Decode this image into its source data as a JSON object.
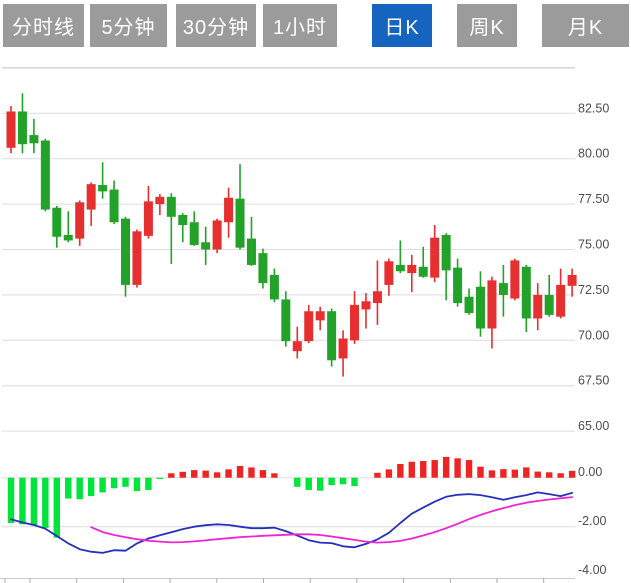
{
  "toolbar": {
    "tabs": [
      {
        "label": "分时线",
        "active": false
      },
      {
        "label": "5分钟",
        "active": false
      },
      {
        "label": "30分钟",
        "active": false
      },
      {
        "label": "1小时",
        "active": false
      },
      {
        "label": "日K",
        "active": true
      },
      {
        "label": "周K",
        "active": false
      },
      {
        "label": "月K",
        "active": false
      }
    ],
    "active_bg": "#1565c0",
    "inactive_bg": "#9b9b9b"
  },
  "chart_data": {
    "type": "candlestick_with_macd",
    "timeframe_selected": "日K",
    "price_axis": {
      "labels": [
        "82.50",
        "80.00",
        "77.50",
        "75.00",
        "72.50",
        "70.00",
        "67.50",
        "65.00"
      ],
      "values": [
        82.5,
        80.0,
        77.5,
        75.0,
        72.5,
        70.0,
        67.5,
        65.0
      ],
      "unlabeled_grid": [
        85.0
      ],
      "ylim": [
        64.7,
        85.4
      ],
      "grid": true
    },
    "macd_axis": {
      "labels": [
        "0.00",
        "-2.00",
        "-4.00"
      ],
      "values": [
        0.0,
        -2.0,
        -4.0
      ],
      "grid_values": [
        0.0,
        -2.0
      ],
      "ylim": [
        -4.1,
        1.3
      ]
    },
    "candles_ohlc": [
      [
        80.6,
        82.9,
        80.3,
        82.6
      ],
      [
        82.6,
        83.6,
        80.3,
        80.8
      ],
      [
        81.3,
        82.2,
        80.3,
        80.85
      ],
      [
        81.0,
        81.1,
        77.1,
        77.2
      ],
      [
        77.3,
        77.4,
        75.1,
        75.7
      ],
      [
        75.8,
        77.1,
        75.4,
        75.5
      ],
      [
        75.6,
        77.7,
        75.2,
        77.6
      ],
      [
        77.2,
        78.7,
        76.3,
        78.6
      ],
      [
        78.55,
        79.8,
        77.8,
        78.2
      ],
      [
        78.3,
        78.8,
        76.4,
        76.5
      ],
      [
        76.7,
        76.8,
        72.4,
        73.05
      ],
      [
        73.05,
        76.1,
        72.9,
        76.0
      ],
      [
        75.75,
        78.5,
        75.6,
        77.65
      ],
      [
        77.5,
        78.05,
        76.9,
        77.9
      ],
      [
        77.9,
        78.1,
        74.2,
        76.8
      ],
      [
        76.9,
        77.0,
        75.4,
        76.35
      ],
      [
        76.5,
        77.1,
        75.2,
        75.25
      ],
      [
        75.4,
        76.25,
        74.15,
        75.0
      ],
      [
        75.0,
        76.7,
        74.8,
        76.6
      ],
      [
        76.5,
        78.4,
        75.65,
        77.85
      ],
      [
        77.8,
        79.7,
        75.0,
        75.1
      ],
      [
        75.6,
        76.8,
        74.1,
        74.15
      ],
      [
        74.8,
        75.05,
        72.85,
        73.15
      ],
      [
        73.6,
        73.95,
        72.1,
        72.25
      ],
      [
        72.25,
        72.7,
        69.65,
        69.95
      ],
      [
        69.4,
        70.75,
        69.0,
        69.95
      ],
      [
        69.95,
        71.95,
        69.85,
        71.6
      ],
      [
        71.1,
        71.85,
        70.55,
        71.6
      ],
      [
        71.6,
        71.75,
        68.55,
        68.9
      ],
      [
        69.0,
        70.55,
        68.0,
        70.1
      ],
      [
        70.0,
        72.7,
        69.8,
        71.95
      ],
      [
        71.7,
        72.6,
        70.65,
        72.15
      ],
      [
        72.05,
        74.4,
        70.85,
        72.7
      ],
      [
        73.05,
        74.5,
        72.45,
        74.35
      ],
      [
        74.15,
        75.5,
        73.7,
        73.8
      ],
      [
        73.7,
        74.7,
        72.65,
        74.15
      ],
      [
        74.05,
        75.15,
        73.45,
        73.5
      ],
      [
        73.45,
        76.35,
        73.2,
        75.65
      ],
      [
        75.8,
        75.9,
        72.2,
        73.85
      ],
      [
        74.0,
        74.5,
        71.85,
        72.05
      ],
      [
        72.4,
        72.85,
        71.4,
        71.5
      ],
      [
        72.95,
        73.8,
        70.2,
        70.65
      ],
      [
        70.65,
        73.5,
        69.55,
        73.3
      ],
      [
        73.15,
        74.15,
        71.3,
        72.5
      ],
      [
        72.3,
        74.5,
        72.2,
        74.4
      ],
      [
        74.05,
        74.15,
        70.45,
        71.2
      ],
      [
        71.2,
        73.15,
        70.55,
        72.5
      ],
      [
        72.5,
        73.6,
        71.3,
        71.4
      ],
      [
        71.3,
        73.95,
        71.2,
        73.05
      ],
      [
        73.0,
        73.95,
        72.4,
        73.6
      ]
    ],
    "macd": {
      "histogram": [
        -1.85,
        -1.9,
        -1.95,
        -2.05,
        -2.45,
        -0.85,
        -0.88,
        -0.75,
        -0.6,
        -0.43,
        -0.37,
        -0.55,
        -0.5,
        -0.05,
        0.18,
        0.24,
        0.31,
        0.29,
        0.22,
        0.34,
        0.48,
        0.42,
        0.31,
        0.18,
        -0.02,
        -0.37,
        -0.5,
        -0.53,
        -0.3,
        -0.27,
        -0.34,
        0.02,
        0.2,
        0.34,
        0.56,
        0.65,
        0.68,
        0.72,
        0.85,
        0.79,
        0.72,
        0.45,
        0.3,
        0.35,
        0.33,
        0.42,
        0.25,
        0.22,
        0.18,
        0.28
      ],
      "dif": [
        -1.7,
        -1.83,
        -1.93,
        -2.08,
        -2.38,
        -2.68,
        -2.92,
        -3.02,
        -3.07,
        -2.96,
        -2.98,
        -2.68,
        -2.48,
        -2.35,
        -2.23,
        -2.1,
        -2.0,
        -1.94,
        -1.9,
        -1.93,
        -2.0,
        -2.06,
        -2.06,
        -2.04,
        -2.18,
        -2.36,
        -2.55,
        -2.65,
        -2.67,
        -2.8,
        -2.84,
        -2.7,
        -2.52,
        -2.25,
        -1.85,
        -1.47,
        -1.22,
        -0.98,
        -0.78,
        -0.7,
        -0.67,
        -0.71,
        -0.8,
        -0.9,
        -0.8,
        -0.71,
        -0.6,
        -0.67,
        -0.75,
        -0.62
      ],
      "dea": [
        null,
        null,
        null,
        null,
        null,
        null,
        null,
        -2.02,
        -2.22,
        -2.34,
        -2.43,
        -2.51,
        -2.57,
        -2.61,
        -2.64,
        -2.63,
        -2.6,
        -2.56,
        -2.51,
        -2.47,
        -2.43,
        -2.4,
        -2.37,
        -2.35,
        -2.33,
        -2.31,
        -2.31,
        -2.34,
        -2.4,
        -2.47,
        -2.54,
        -2.61,
        -2.65,
        -2.63,
        -2.58,
        -2.48,
        -2.36,
        -2.22,
        -2.06,
        -1.88,
        -1.69,
        -1.52,
        -1.37,
        -1.24,
        -1.12,
        -1.02,
        -0.95,
        -0.89,
        -0.84,
        -0.79
      ]
    },
    "colors": {
      "up": "#e62f2f",
      "down": "#23a229",
      "hist_pos": "#ee2424",
      "hist_neg": "#00e43c",
      "dif_line": "#2531bd",
      "dea_line": "#ef25d3",
      "grid": "#dedede",
      "axis_text": "#4d4d4d"
    }
  }
}
